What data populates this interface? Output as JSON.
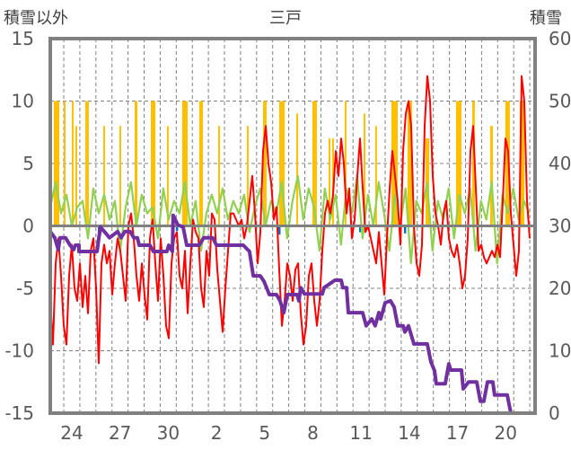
{
  "chart_data": {
    "type": "line",
    "title": "三戸",
    "ylabel_left": "積雪以外",
    "ylabel_right": "積雪",
    "ylim_left": [
      -15,
      15
    ],
    "ylim_right": [
      0,
      60
    ],
    "yticks_left": [
      "15",
      "10",
      "5",
      "0",
      "-5",
      "-10",
      "-15"
    ],
    "yticks_right": [
      "60",
      "50",
      "40",
      "30",
      "20",
      "10",
      "0"
    ],
    "xlim_days": [
      0,
      30.17
    ],
    "xtick_first_day": 1.34,
    "xtick_step_days": 3,
    "xticks": [
      "24",
      "27",
      "30",
      "2",
      "5",
      "8",
      "11",
      "14",
      "17",
      "20"
    ],
    "day_grid_first": 0.84,
    "grid": true,
    "colors": {
      "sunshine": "#FFC000",
      "temperature": "#FF0000",
      "wind": "#92D050",
      "snow_depth": "#7030A0",
      "precip": "#0070C0",
      "frame": "#808080"
    },
    "sunshine_bars": [
      [
        0.22,
        0.56,
        10
      ],
      [
        0.84,
        0.88,
        10
      ],
      [
        1.34,
        1.38,
        10
      ],
      [
        1.56,
        1.6,
        8
      ],
      [
        2.18,
        2.4,
        10
      ],
      [
        3.3,
        3.34,
        8
      ],
      [
        4.3,
        4.34,
        8
      ],
      [
        5.25,
        5.42,
        10
      ],
      [
        6.26,
        6.54,
        10
      ],
      [
        7.26,
        7.3,
        8
      ],
      [
        8.21,
        8.55,
        10
      ],
      [
        9.27,
        9.5,
        10
      ],
      [
        10.45,
        10.49,
        8
      ],
      [
        12.23,
        12.27,
        8
      ],
      [
        13.24,
        13.46,
        10
      ],
      [
        14.25,
        14.58,
        10
      ],
      [
        15.31,
        15.35,
        9
      ],
      [
        16.31,
        16.59,
        10
      ],
      [
        17.32,
        17.36,
        7
      ],
      [
        17.54,
        17.58,
        7
      ],
      [
        18.32,
        18.36,
        10
      ],
      [
        19.5,
        19.54,
        9
      ],
      [
        20.22,
        20.26,
        8
      ],
      [
        21.23,
        21.62,
        10
      ],
      [
        22.23,
        22.51,
        10
      ],
      [
        23.35,
        23.58,
        7
      ],
      [
        25.25,
        25.59,
        10
      ],
      [
        26.26,
        26.42,
        10
      ],
      [
        27.37,
        27.54,
        8
      ],
      [
        28.32,
        28.6,
        10
      ],
      [
        29.22,
        29.5,
        10
      ]
    ],
    "precip_bars": [
      [
        2.96,
        -0.6
      ],
      [
        7.82,
        -0.4
      ],
      [
        14.19,
        -0.7
      ],
      [
        19.22,
        -0.5
      ],
      [
        22.01,
        -0.6
      ]
    ],
    "temperature": {
      "start": 0,
      "step": 0.1676,
      "values": [
        -6,
        -9.5,
        -3,
        -1,
        -4,
        -8,
        -9.5,
        -4,
        -1.5,
        -5,
        -6,
        -3,
        -6.5,
        -4,
        -7,
        -2,
        -1,
        -5,
        -11,
        -3,
        -1.5,
        -3,
        -2,
        -5.5,
        -3,
        -1,
        -2,
        -4,
        -6,
        0,
        1,
        -1,
        -4,
        -6,
        -3,
        -5.5,
        -7.5,
        -1,
        0.5,
        -3,
        -6,
        -1,
        -4,
        -8,
        -9,
        -3,
        -1,
        -0.5,
        -4,
        -5,
        -2,
        -7,
        -3,
        0.5,
        -0.5,
        -1,
        -5,
        -6.5,
        -2,
        -4,
        1,
        0.5,
        -3.5,
        -6,
        -8.5,
        -5,
        -2,
        1,
        1,
        0.5,
        0,
        0.5,
        -1,
        0,
        2,
        4,
        1,
        -3,
        -0.5,
        6,
        8,
        5,
        3.5,
        0.5,
        1.5,
        -3.5,
        -8,
        -6,
        -3,
        -4,
        -6,
        -3.5,
        -3,
        -7,
        -9.5,
        -8,
        -4,
        -3,
        -6,
        -8,
        -6,
        -2,
        1,
        2,
        1,
        2.5,
        6,
        4,
        7,
        5,
        1,
        3,
        -1,
        0.5,
        4,
        7,
        3,
        -0.5,
        0,
        -1,
        -2,
        -3,
        -0.5,
        -3,
        -5.5,
        -1,
        3,
        6,
        4,
        2,
        -1.5,
        6,
        9,
        10,
        8,
        0,
        -3,
        -4,
        -1.5,
        8,
        12,
        10,
        4,
        1,
        0,
        -1.5,
        1,
        2,
        -1,
        -2,
        -2.5,
        -1.5,
        -3,
        -5,
        -4,
        -1,
        6,
        8,
        3,
        -2,
        -1.5,
        -2.5,
        -3,
        -2.5,
        -2,
        -2.5,
        -1.5,
        -2.5,
        2,
        7,
        6,
        1,
        -1.5,
        -4,
        -2,
        12,
        10,
        2,
        -1
      ]
    },
    "wind": {
      "start": 0,
      "step": 0.335,
      "values": [
        1.5,
        3.5,
        1,
        2.5,
        0,
        1.5,
        2,
        -1,
        3,
        1,
        2.5,
        0.5,
        2,
        -2,
        1.5,
        3.5,
        0,
        2.5,
        1,
        1.5,
        -1,
        3,
        0.5,
        2,
        1,
        3.5,
        0,
        2,
        -2,
        1,
        2.5,
        1,
        3,
        0.5,
        2,
        1,
        2.5,
        -0.5,
        1.5,
        3,
        0,
        2,
        1,
        3.5,
        -1,
        2,
        4,
        0.5,
        3,
        1.5,
        -2,
        3,
        0.5,
        2.5,
        -1.5,
        3,
        1,
        4,
        -1,
        2.5,
        0,
        3.5,
        1,
        -2,
        2.5,
        0,
        3,
        -3,
        2,
        1,
        3.5,
        -2,
        2,
        0.5,
        3,
        -1,
        2.5,
        1,
        3,
        -2,
        2,
        0.5,
        3.5,
        -3,
        2.5,
        1,
        3,
        0.5,
        2,
        1
      ]
    },
    "snow_depth": [
      [
        0,
        29.1
      ],
      [
        0.28,
        28.1
      ],
      [
        0.5,
        26.2
      ],
      [
        0.61,
        28.1
      ],
      [
        0.95,
        28.1
      ],
      [
        1.23,
        26.9
      ],
      [
        1.45,
        26.2
      ],
      [
        1.56,
        26.9
      ],
      [
        1.79,
        26.9
      ],
      [
        1.79,
        25.9
      ],
      [
        2.91,
        25.9
      ],
      [
        3.02,
        28.1
      ],
      [
        3.13,
        29.8
      ],
      [
        3.46,
        28.8
      ],
      [
        3.69,
        28.1
      ],
      [
        4.19,
        29.1
      ],
      [
        4.41,
        28.1
      ],
      [
        4.64,
        29.1
      ],
      [
        4.97,
        29.1
      ],
      [
        5.2,
        28.1
      ],
      [
        5.42,
        28.1
      ],
      [
        5.53,
        26.9
      ],
      [
        6.2,
        26.9
      ],
      [
        6.42,
        25.9
      ],
      [
        7.26,
        25.9
      ],
      [
        7.37,
        26.9
      ],
      [
        7.6,
        25.9
      ],
      [
        7.65,
        31.7
      ],
      [
        7.93,
        30.2
      ],
      [
        8.27,
        29.8
      ],
      [
        8.49,
        26.9
      ],
      [
        9.27,
        26.9
      ],
      [
        9.55,
        28.1
      ],
      [
        9.78,
        28.1
      ],
      [
        10.11,
        28.1
      ],
      [
        10.34,
        26.9
      ],
      [
        12.01,
        26.9
      ],
      [
        12.4,
        25.9
      ],
      [
        12.63,
        22
      ],
      [
        13.07,
        22
      ],
      [
        13.3,
        21.1
      ],
      [
        13.63,
        19
      ],
      [
        14.08,
        19
      ],
      [
        14.3,
        18
      ],
      [
        14.53,
        16.1
      ],
      [
        14.75,
        19
      ],
      [
        15.36,
        19
      ],
      [
        15.47,
        18
      ],
      [
        15.59,
        20.1
      ],
      [
        15.81,
        19.1
      ],
      [
        16.93,
        19.1
      ],
      [
        17.04,
        20.1
      ],
      [
        17.71,
        21.3
      ],
      [
        18.1,
        21.3
      ],
      [
        18.21,
        20.1
      ],
      [
        18.44,
        20.1
      ],
      [
        18.55,
        16.1
      ],
      [
        19.44,
        16.1
      ],
      [
        19.66,
        14
      ],
      [
        20.0,
        15.1
      ],
      [
        20.22,
        14
      ],
      [
        20.45,
        16.1
      ],
      [
        20.56,
        15.1
      ],
      [
        20.84,
        17.7
      ],
      [
        21.17,
        18
      ],
      [
        21.4,
        17
      ],
      [
        21.62,
        14
      ],
      [
        21.96,
        14
      ],
      [
        22.07,
        13
      ],
      [
        22.29,
        14
      ],
      [
        22.63,
        11.1
      ],
      [
        23.46,
        11.1
      ],
      [
        23.69,
        8.2
      ],
      [
        23.91,
        6.8
      ],
      [
        24.02,
        4.7
      ],
      [
        24.58,
        4.7
      ],
      [
        24.8,
        7.9
      ],
      [
        24.92,
        6.9
      ],
      [
        25.59,
        6.9
      ],
      [
        25.7,
        3.9
      ],
      [
        26.03,
        5
      ],
      [
        26.54,
        5
      ],
      [
        26.76,
        1.9
      ],
      [
        26.98,
        1.9
      ],
      [
        27.21,
        5
      ],
      [
        27.54,
        5
      ],
      [
        27.65,
        2.9
      ],
      [
        28.44,
        2.9
      ],
      [
        28.66,
        0
      ],
      [
        30.17,
        0
      ]
    ]
  }
}
